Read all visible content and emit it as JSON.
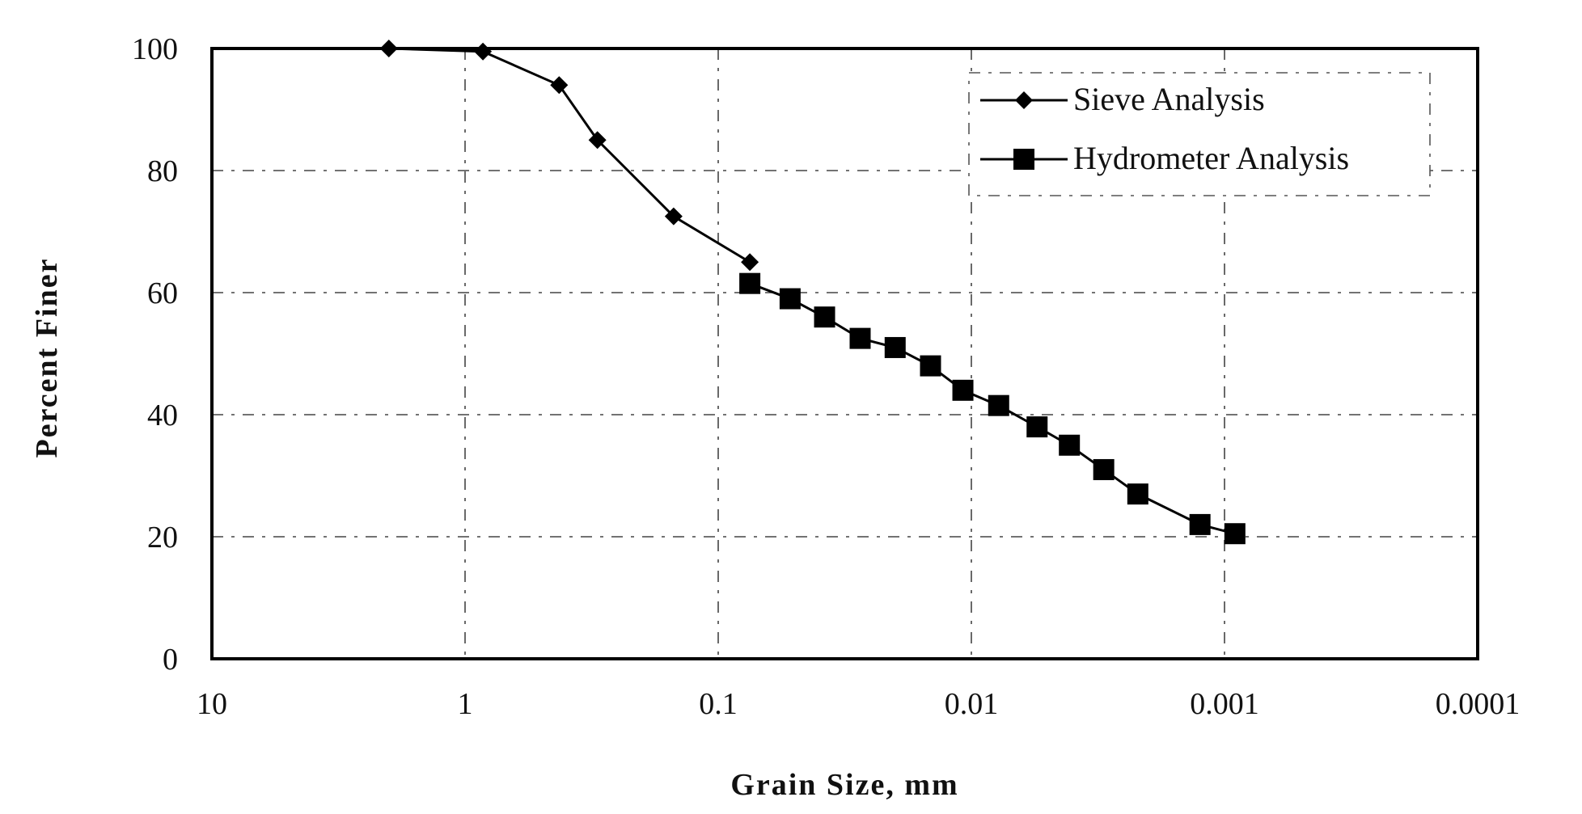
{
  "chart_data": {
    "type": "line",
    "title": "",
    "xlabel": "Grain Size, mm",
    "ylabel": "Percent Finer",
    "x_scale": "log",
    "x_reversed": true,
    "xlim": [
      10,
      0.0001
    ],
    "ylim": [
      0,
      100
    ],
    "x_ticks": [
      10,
      1,
      0.1,
      0.01,
      0.001,
      0.0001
    ],
    "x_tick_labels": [
      "10",
      "1",
      "0.1",
      "0.01",
      "0.001",
      "0.0001"
    ],
    "y_ticks": [
      0,
      20,
      40,
      60,
      80,
      100
    ],
    "y_tick_labels": [
      "0",
      "20",
      "40",
      "60",
      "80",
      "100"
    ],
    "grid": true,
    "legend_position": "top-right",
    "series": [
      {
        "name": "Sieve Analysis",
        "marker": "diamond",
        "x": [
          2.0,
          0.85,
          0.425,
          0.3,
          0.15,
          0.075
        ],
        "y": [
          100,
          99.5,
          94,
          85,
          72.5,
          65
        ]
      },
      {
        "name": "Hydrometer Analysis",
        "marker": "square",
        "x": [
          0.075,
          0.052,
          0.038,
          0.0275,
          0.02,
          0.0145,
          0.0108,
          0.0078,
          0.0055,
          0.0041,
          0.003,
          0.0022,
          0.00125,
          0.00091
        ],
        "y": [
          61.5,
          59,
          56,
          52.5,
          51,
          48,
          44,
          41.5,
          38,
          35,
          31,
          27,
          22,
          20.5
        ]
      }
    ]
  }
}
